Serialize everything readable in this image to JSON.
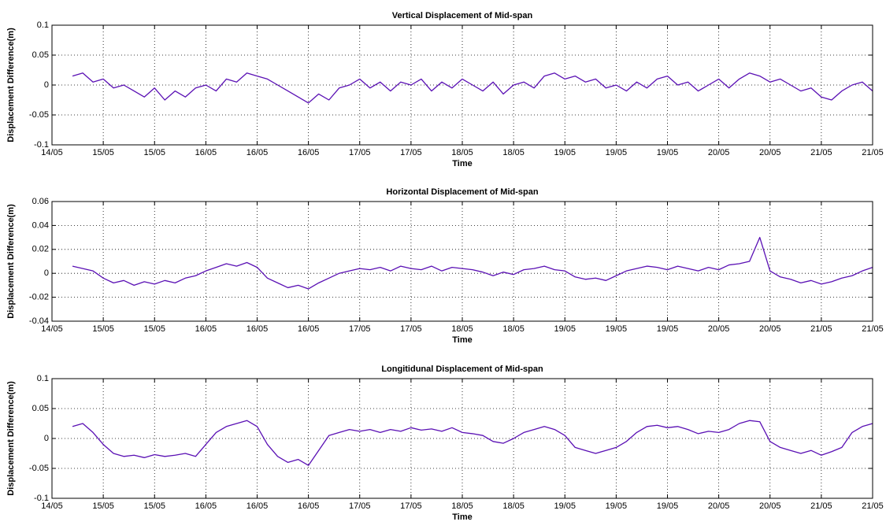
{
  "chart_data": [
    {
      "type": "line",
      "title": "Vertical Displacement of Mid-span",
      "x_label": "Time",
      "y_label": "Displacement Difference(m)",
      "x": [
        14.2,
        14.3,
        14.4,
        14.5,
        14.6,
        14.7,
        14.8,
        14.9,
        15,
        15.1,
        15.2,
        15.3,
        15.4,
        15.5,
        15.6,
        15.7,
        15.8,
        15.9,
        16,
        16.1,
        16.2,
        16.3,
        16.4,
        16.5,
        16.6,
        16.7,
        16.8,
        16.9,
        17,
        17.1,
        17.2,
        17.3,
        17.4,
        17.5,
        17.6,
        17.7,
        17.8,
        17.9,
        18,
        18.1,
        18.2,
        18.3,
        18.4,
        18.5,
        18.6,
        18.7,
        18.8,
        18.9,
        19,
        19.1,
        19.2,
        19.3,
        19.4,
        19.5,
        19.6,
        19.7,
        19.8,
        19.9,
        20,
        20.1,
        20.2,
        20.3,
        20.4,
        20.5,
        20.6,
        20.7,
        20.8,
        20.9,
        21,
        21.1,
        21.2,
        21.3,
        21.4,
        21.5,
        21.6,
        21.7,
        21.8,
        21.9,
        22
      ],
      "xlim": [
        14,
        22
      ],
      "xticks": [
        {
          "value": 14,
          "label": "14/05"
        },
        {
          "value": 14.5,
          "label": "15/05"
        },
        {
          "value": 15,
          "label": "15/05"
        },
        {
          "value": 15.5,
          "label": "16/05"
        },
        {
          "value": 16,
          "label": "16/05"
        },
        {
          "value": 16.5,
          "label": "16/05"
        },
        {
          "value": 17,
          "label": "17/05"
        },
        {
          "value": 17.5,
          "label": "17/05"
        },
        {
          "value": 18,
          "label": "18/05"
        },
        {
          "value": 18.5,
          "label": "18/05"
        },
        {
          "value": 19,
          "label": "19/05"
        },
        {
          "value": 19.5,
          "label": "19/05"
        },
        {
          "value": 20,
          "label": "19/05"
        },
        {
          "value": 20.5,
          "label": "20/05"
        },
        {
          "value": 21,
          "label": "20/05"
        },
        {
          "value": 21.5,
          "label": "21/05"
        },
        {
          "value": 22,
          "label": "21/05"
        }
      ],
      "ylim": [
        -0.1,
        0.1
      ],
      "yticks": [
        -0.1,
        -0.05,
        0,
        0.05,
        0.1
      ],
      "grid": true,
      "series": [
        {
          "color": "#5a10b4",
          "values": [
            0.015,
            0.02,
            0.005,
            0.01,
            -0.005,
            0,
            -0.01,
            -0.02,
            -0.005,
            -0.025,
            -0.01,
            -0.02,
            -0.005,
            0,
            -0.01,
            0.01,
            0.005,
            0.02,
            0.015,
            0.01,
            0,
            -0.01,
            -0.02,
            -0.03,
            -0.015,
            -0.025,
            -0.005,
            0,
            0.01,
            -0.005,
            0.005,
            -0.01,
            0.005,
            0,
            0.01,
            -0.01,
            0.005,
            -0.005,
            0.01,
            0,
            -0.01,
            0.005,
            -0.015,
            0,
            0.005,
            -0.005,
            0.015,
            0.02,
            0.01,
            0.015,
            0.005,
            0.01,
            -0.005,
            0,
            -0.01,
            0.005,
            -0.005,
            0.01,
            0.015,
            0,
            0.005,
            -0.01,
            0,
            0.01,
            -0.005,
            0.01,
            0.02,
            0.015,
            0.005,
            0.01,
            0,
            -0.01,
            -0.005,
            -0.02,
            -0.025,
            -0.01,
            0,
            0.005,
            -0.01
          ]
        }
      ]
    },
    {
      "type": "line",
      "title": "Horizontal Displacement of Mid-span",
      "x_label": "Time",
      "y_label": "Displacement Difference(m)",
      "x": [
        14.2,
        14.3,
        14.4,
        14.5,
        14.6,
        14.7,
        14.8,
        14.9,
        15,
        15.1,
        15.2,
        15.3,
        15.4,
        15.5,
        15.6,
        15.7,
        15.8,
        15.9,
        16,
        16.1,
        16.2,
        16.3,
        16.4,
        16.5,
        16.6,
        16.7,
        16.8,
        16.9,
        17,
        17.1,
        17.2,
        17.3,
        17.4,
        17.5,
        17.6,
        17.7,
        17.8,
        17.9,
        18,
        18.1,
        18.2,
        18.3,
        18.4,
        18.5,
        18.6,
        18.7,
        18.8,
        18.9,
        19,
        19.1,
        19.2,
        19.3,
        19.4,
        19.5,
        19.6,
        19.7,
        19.8,
        19.9,
        20,
        20.1,
        20.2,
        20.3,
        20.4,
        20.5,
        20.6,
        20.7,
        20.8,
        20.9,
        21,
        21.1,
        21.2,
        21.3,
        21.4,
        21.5,
        21.6,
        21.7,
        21.8,
        21.9,
        22
      ],
      "xlim": [
        14,
        22
      ],
      "xticks": [
        {
          "value": 14,
          "label": "14/05"
        },
        {
          "value": 14.5,
          "label": "15/05"
        },
        {
          "value": 15,
          "label": "15/05"
        },
        {
          "value": 15.5,
          "label": "16/05"
        },
        {
          "value": 16,
          "label": "16/05"
        },
        {
          "value": 16.5,
          "label": "16/05"
        },
        {
          "value": 17,
          "label": "17/05"
        },
        {
          "value": 17.5,
          "label": "17/05"
        },
        {
          "value": 18,
          "label": "18/05"
        },
        {
          "value": 18.5,
          "label": "18/05"
        },
        {
          "value": 19,
          "label": "19/05"
        },
        {
          "value": 19.5,
          "label": "19/05"
        },
        {
          "value": 20,
          "label": "19/05"
        },
        {
          "value": 20.5,
          "label": "20/05"
        },
        {
          "value": 21,
          "label": "20/05"
        },
        {
          "value": 21.5,
          "label": "21/05"
        },
        {
          "value": 22,
          "label": "21/05"
        }
      ],
      "ylim": [
        -0.04,
        0.06
      ],
      "yticks": [
        -0.04,
        -0.02,
        0,
        0.02,
        0.04,
        0.06
      ],
      "grid": true,
      "series": [
        {
          "color": "#5a10b4",
          "values": [
            0.006,
            0.004,
            0.002,
            -0.004,
            -0.008,
            -0.006,
            -0.01,
            -0.007,
            -0.009,
            -0.006,
            -0.008,
            -0.004,
            -0.002,
            0.002,
            0.005,
            0.008,
            0.006,
            0.009,
            0.005,
            -0.004,
            -0.008,
            -0.012,
            -0.01,
            -0.013,
            -0.008,
            -0.004,
            0,
            0.002,
            0.004,
            0.003,
            0.005,
            0.002,
            0.006,
            0.004,
            0.003,
            0.006,
            0.002,
            0.005,
            0.004,
            0.003,
            0.001,
            -0.002,
            0.001,
            -0.001,
            0.003,
            0.004,
            0.006,
            0.003,
            0.002,
            -0.003,
            -0.005,
            -0.004,
            -0.006,
            -0.002,
            0.002,
            0.004,
            0.006,
            0.005,
            0.003,
            0.006,
            0.004,
            0.002,
            0.005,
            0.003,
            0.007,
            0.008,
            0.01,
            0.03,
            0.002,
            -0.003,
            -0.005,
            -0.008,
            -0.006,
            -0.009,
            -0.007,
            -0.004,
            -0.002,
            0.002,
            0.005
          ]
        }
      ]
    },
    {
      "type": "line",
      "title": "Longitidunal Displacement of Mid-span",
      "x_label": "Time",
      "y_label": "Displacement Difference(m)",
      "x": [
        14.2,
        14.3,
        14.4,
        14.5,
        14.6,
        14.7,
        14.8,
        14.9,
        15,
        15.1,
        15.2,
        15.3,
        15.4,
        15.5,
        15.6,
        15.7,
        15.8,
        15.9,
        16,
        16.1,
        16.2,
        16.3,
        16.4,
        16.5,
        16.6,
        16.7,
        16.8,
        16.9,
        17,
        17.1,
        17.2,
        17.3,
        17.4,
        17.5,
        17.6,
        17.7,
        17.8,
        17.9,
        18,
        18.1,
        18.2,
        18.3,
        18.4,
        18.5,
        18.6,
        18.7,
        18.8,
        18.9,
        19,
        19.1,
        19.2,
        19.3,
        19.4,
        19.5,
        19.6,
        19.7,
        19.8,
        19.9,
        20,
        20.1,
        20.2,
        20.3,
        20.4,
        20.5,
        20.6,
        20.7,
        20.8,
        20.9,
        21,
        21.1,
        21.2,
        21.3,
        21.4,
        21.5,
        21.6,
        21.7,
        21.8,
        21.9,
        22
      ],
      "xlim": [
        14,
        22
      ],
      "xticks": [
        {
          "value": 14,
          "label": "14/05"
        },
        {
          "value": 14.5,
          "label": "15/05"
        },
        {
          "value": 15,
          "label": "15/05"
        },
        {
          "value": 15.5,
          "label": "16/05"
        },
        {
          "value": 16,
          "label": "16/05"
        },
        {
          "value": 16.5,
          "label": "16/05"
        },
        {
          "value": 17,
          "label": "17/05"
        },
        {
          "value": 17.5,
          "label": "17/05"
        },
        {
          "value": 18,
          "label": "18/05"
        },
        {
          "value": 18.5,
          "label": "18/05"
        },
        {
          "value": 19,
          "label": "19/05"
        },
        {
          "value": 19.5,
          "label": "19/05"
        },
        {
          "value": 20,
          "label": "19/05"
        },
        {
          "value": 20.5,
          "label": "20/05"
        },
        {
          "value": 21,
          "label": "20/05"
        },
        {
          "value": 21.5,
          "label": "21/05"
        },
        {
          "value": 22,
          "label": "21/05"
        }
      ],
      "ylim": [
        -0.1,
        0.1
      ],
      "yticks": [
        -0.1,
        -0.05,
        0,
        0.05,
        0.1
      ],
      "grid": true,
      "series": [
        {
          "color": "#5a10b4",
          "values": [
            0.02,
            0.025,
            0.01,
            -0.01,
            -0.025,
            -0.03,
            -0.028,
            -0.032,
            -0.027,
            -0.03,
            -0.028,
            -0.025,
            -0.03,
            -0.01,
            0.01,
            0.02,
            0.025,
            0.03,
            0.02,
            -0.01,
            -0.03,
            -0.04,
            -0.035,
            -0.045,
            -0.02,
            0.005,
            0.01,
            0.015,
            0.012,
            0.015,
            0.01,
            0.015,
            0.012,
            0.018,
            0.014,
            0.016,
            0.012,
            0.018,
            0.01,
            0.008,
            0.005,
            -0.005,
            -0.008,
            0,
            0.01,
            0.015,
            0.02,
            0.015,
            0.005,
            -0.015,
            -0.02,
            -0.025,
            -0.02,
            -0.015,
            -0.005,
            0.01,
            0.02,
            0.022,
            0.018,
            0.02,
            0.015,
            0.008,
            0.012,
            0.01,
            0.015,
            0.025,
            0.03,
            0.028,
            -0.005,
            -0.015,
            -0.02,
            -0.025,
            -0.02,
            -0.028,
            -0.022,
            -0.015,
            0.01,
            0.02,
            0.025
          ]
        }
      ]
    }
  ]
}
